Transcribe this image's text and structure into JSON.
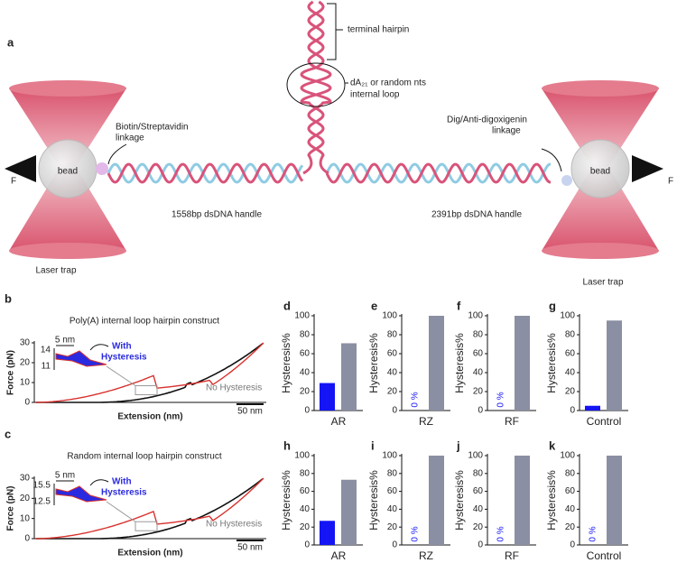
{
  "panel_a": {
    "label": "a",
    "left_force": "F",
    "right_force": "F",
    "left_bead": "bead",
    "right_bead": "bead",
    "left_trap": "Laser trap",
    "right_trap": "Laser trap",
    "left_linkage": [
      "Biotin/Streptavidin",
      "linkage"
    ],
    "right_linkage": [
      "Dig/Anti-digoxigenin",
      "linkage"
    ],
    "left_handle": "1558bp dsDNA handle",
    "right_handle": "2391bp dsDNA handle",
    "hairpin_label": "terminal hairpin",
    "loop_label": [
      "dA₂₁ or random nts",
      "internal loop"
    ]
  },
  "force_panels": [
    {
      "label": "b",
      "title": "Poly(A) internal loop hairpin construct",
      "ylabel": "Force (pN)",
      "xlabel": "Extension (nm)",
      "ylim": [
        0,
        30
      ],
      "yticks": [
        0,
        10,
        20,
        30
      ],
      "inset_ticks": [
        14,
        11
      ],
      "inset_scale": "5 nm",
      "with_label": [
        "With",
        "Hysteresis"
      ],
      "no_label": "No Hysteresis",
      "scale": "50 nm"
    },
    {
      "label": "c",
      "title": "Random internal loop hairpin construct",
      "ylabel": "Force (pN)",
      "xlabel": "Extension (nm)",
      "ylim": [
        0,
        30
      ],
      "yticks": [
        0,
        10,
        20,
        30
      ],
      "inset_ticks": [
        15.5,
        12.5
      ],
      "inset_scale": "5 nm",
      "with_label": [
        "With",
        "Hysteresis"
      ],
      "no_label": "No Hysteresis",
      "scale": "50 nm"
    }
  ],
  "chart_data": [
    {
      "type": "bar",
      "panel": "d",
      "ylabel": "Hysteresis%",
      "xlabel": "AR",
      "values": [
        29,
        71
      ],
      "colors": [
        "#1414f5",
        "#8b8fa3"
      ],
      "ylim": [
        0,
        100
      ],
      "yticks": [
        0,
        20,
        40,
        60,
        80,
        100
      ]
    },
    {
      "type": "bar",
      "panel": "e",
      "ylabel": "Hysteresis%",
      "xlabel": "RZ",
      "values": [
        0,
        100
      ],
      "value_labels": [
        "0 %",
        null
      ],
      "colors": [
        "#1414f5",
        "#8b8fa3"
      ],
      "ylim": [
        0,
        100
      ],
      "yticks": [
        0,
        20,
        40,
        60,
        80,
        100
      ]
    },
    {
      "type": "bar",
      "panel": "f",
      "ylabel": "Hysteresis%",
      "xlabel": "RF",
      "values": [
        0,
        100
      ],
      "value_labels": [
        "0 %",
        null
      ],
      "colors": [
        "#1414f5",
        "#8b8fa3"
      ],
      "ylim": [
        0,
        100
      ],
      "yticks": [
        0,
        20,
        40,
        60,
        80,
        100
      ]
    },
    {
      "type": "bar",
      "panel": "g",
      "ylabel": "Hysteresis%",
      "xlabel": "Control",
      "values": [
        5,
        95
      ],
      "colors": [
        "#1414f5",
        "#8b8fa3"
      ],
      "ylim": [
        0,
        100
      ],
      "yticks": [
        0,
        20,
        40,
        60,
        80,
        100
      ]
    },
    {
      "type": "bar",
      "panel": "h",
      "ylabel": "Hysteresis%",
      "xlabel": "AR",
      "values": [
        27,
        73
      ],
      "colors": [
        "#1414f5",
        "#8b8fa3"
      ],
      "ylim": [
        0,
        100
      ],
      "yticks": [
        0,
        20,
        40,
        60,
        80,
        100
      ]
    },
    {
      "type": "bar",
      "panel": "i",
      "ylabel": "Hysteresis%",
      "xlabel": "RZ",
      "values": [
        0,
        100
      ],
      "value_labels": [
        "0 %",
        null
      ],
      "colors": [
        "#1414f5",
        "#8b8fa3"
      ],
      "ylim": [
        0,
        100
      ],
      "yticks": [
        0,
        20,
        40,
        60,
        80,
        100
      ]
    },
    {
      "type": "bar",
      "panel": "j",
      "ylabel": "Hysteresis%",
      "xlabel": "RF",
      "values": [
        0,
        100
      ],
      "value_labels": [
        "0 %",
        null
      ],
      "colors": [
        "#1414f5",
        "#8b8fa3"
      ],
      "ylim": [
        0,
        100
      ],
      "yticks": [
        0,
        20,
        40,
        60,
        80,
        100
      ]
    },
    {
      "type": "bar",
      "panel": "k",
      "ylabel": "Hysteresis%",
      "xlabel": "Control",
      "values": [
        0,
        100
      ],
      "value_labels": [
        "0 %",
        null
      ],
      "colors": [
        "#1414f5",
        "#8b8fa3"
      ],
      "ylim": [
        0,
        100
      ],
      "yticks": [
        0,
        20,
        40,
        60,
        80,
        100
      ]
    }
  ]
}
